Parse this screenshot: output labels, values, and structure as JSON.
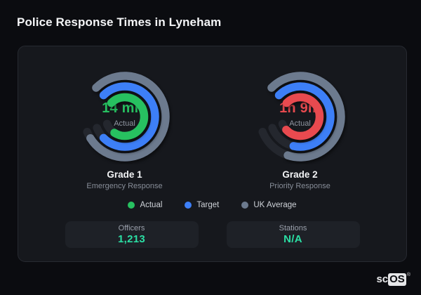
{
  "page_title": "Police Response Times in Lyneham",
  "colors": {
    "background": "#0b0c10",
    "card_background": "#16181d",
    "card_border": "#272a31",
    "actual_green": "#27c060",
    "target_blue": "#3d7ff7",
    "uk_average_gray": "#6c7a8e",
    "actual_red": "#e84a4f",
    "track": "#24272e",
    "stat_value_teal": "#2bdfa4"
  },
  "chart_data": {
    "type": "radial-gauges",
    "start_angle_deg": -45,
    "track_sweep_deg": 293,
    "track_color": "#24272e",
    "stroke_width": 11.5,
    "legend": [
      {
        "label": "Actual",
        "color": "#27c060"
      },
      {
        "label": "Target",
        "color": "#3d7ff7"
      },
      {
        "label": "UK Average",
        "color": "#6c7a8e"
      }
    ],
    "gauges": [
      {
        "title": "Grade 1",
        "subtitle": "Emergency Response",
        "value_label": "14 min",
        "value_color": "#27c060",
        "center_caption": "Actual",
        "rings": [
          {
            "name": "UK Average",
            "color": "#6c7a8e",
            "radius": 58,
            "sweep_deg": 283
          },
          {
            "name": "Target",
            "color": "#3d7ff7",
            "radius": 43,
            "sweep_deg": 270
          },
          {
            "name": "Actual",
            "color": "#27c060",
            "radius": 27.5,
            "sweep_deg": 258
          }
        ]
      },
      {
        "title": "Grade 2",
        "subtitle": "Priority Response",
        "value_label": "1h 9m",
        "value_color": "#e84a4f",
        "center_caption": "Actual",
        "rings": [
          {
            "name": "UK Average",
            "color": "#6c7a8e",
            "radius": 58,
            "sweep_deg": 243
          },
          {
            "name": "Target",
            "color": "#3d7ff7",
            "radius": 43,
            "sweep_deg": 238
          },
          {
            "name": "Actual",
            "color": "#e84a4f",
            "radius": 27.5,
            "sweep_deg": 272
          }
        ]
      }
    ]
  },
  "stats": [
    {
      "label": "Officers",
      "value": "1,213"
    },
    {
      "label": "Stations",
      "value": "N/A"
    }
  ],
  "logo": {
    "prefix": "sc",
    "suffix": "OS",
    "mark": "®"
  }
}
